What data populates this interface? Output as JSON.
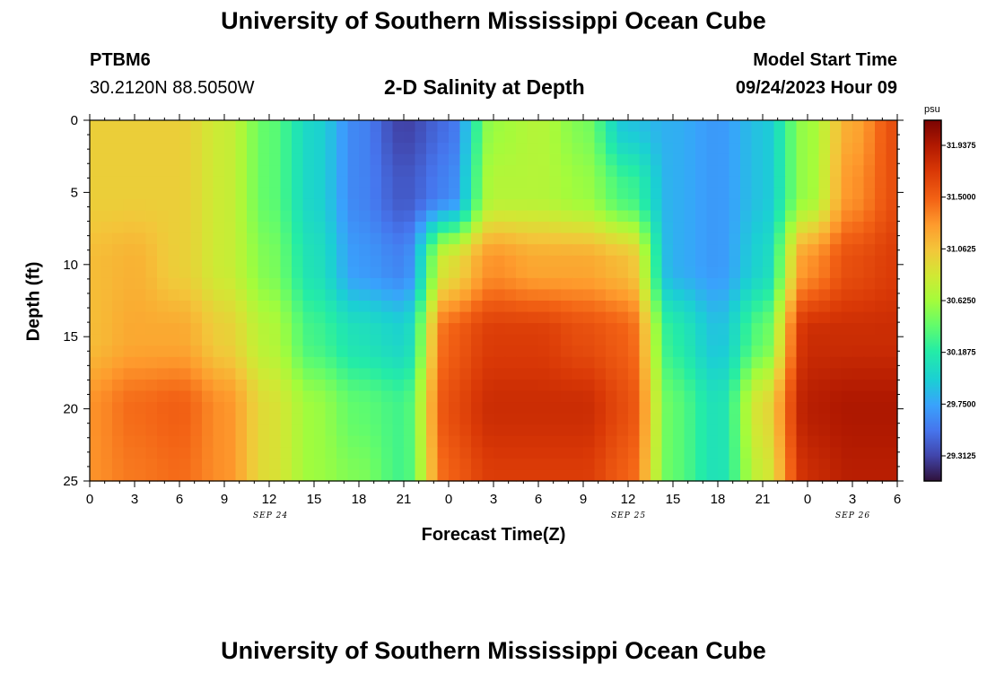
{
  "page": {
    "title_top": "University of Southern Mississippi Ocean Cube",
    "title_bottom": "University of Southern Mississippi Ocean Cube"
  },
  "station": {
    "id": "PTBM6",
    "coords": "30.2120N  88.5050W"
  },
  "model": {
    "label": "Model Start Time",
    "datetime": "09/24/2023 Hour 09"
  },
  "chart_data": {
    "type": "heatmap",
    "title": "2-D Salinity at Depth",
    "xlabel": "Forecast Time(Z)",
    "ylabel": "Depth (ft)",
    "x_range_hours": [
      0,
      54
    ],
    "ylim": [
      0,
      25
    ],
    "y_inverted": true,
    "x_tick_labels": [
      "0",
      "3",
      "6",
      "9",
      "12",
      "15",
      "18",
      "21",
      "0",
      "3",
      "6",
      "9",
      "12",
      "15",
      "18",
      "21",
      "0",
      "3",
      "6"
    ],
    "y_tick_labels": [
      "0",
      "5",
      "10",
      "15",
      "20",
      "25"
    ],
    "date_labels": [
      {
        "text": "SEP 24",
        "hour": 12
      },
      {
        "text": "SEP 25",
        "hour": 36
      },
      {
        "text": "SEP 26",
        "hour": 51
      }
    ],
    "colorbar": {
      "unit": "psu",
      "min": 29.1,
      "max": 32.15,
      "tick_labels": [
        "31.9375",
        "31.5000",
        "31.0625",
        "30.6250",
        "30.1875",
        "29.7500",
        "29.3125"
      ]
    },
    "grid_depth_ft": [
      0,
      5,
      10,
      15,
      20,
      25
    ],
    "grid_hours": [
      0,
      3,
      6,
      9,
      12,
      15,
      18,
      21,
      24,
      27,
      30,
      33,
      36,
      39,
      42,
      45,
      48,
      51,
      54
    ],
    "salinity_grid": [
      [
        31.0,
        31.0,
        31.0,
        30.8,
        30.4,
        30.0,
        29.6,
        29.3,
        29.5,
        30.6,
        30.7,
        30.5,
        29.9,
        29.8,
        29.7,
        29.9,
        30.6,
        31.2,
        31.6
      ],
      [
        31.0,
        31.0,
        31.0,
        30.8,
        30.4,
        30.0,
        29.6,
        29.4,
        29.6,
        30.7,
        30.7,
        30.6,
        30.3,
        29.8,
        29.7,
        29.9,
        30.6,
        31.3,
        31.6
      ],
      [
        31.1,
        31.15,
        31.0,
        30.8,
        30.5,
        30.1,
        29.7,
        29.6,
        30.9,
        31.3,
        31.2,
        31.2,
        31.1,
        29.8,
        29.7,
        30.0,
        31.3,
        31.6,
        31.7
      ],
      [
        31.1,
        31.2,
        31.2,
        31.0,
        30.7,
        30.3,
        30.1,
        30.0,
        31.5,
        31.7,
        31.7,
        31.6,
        31.5,
        30.2,
        29.9,
        30.4,
        31.8,
        31.8,
        31.8
      ],
      [
        31.3,
        31.45,
        31.5,
        31.3,
        30.9,
        30.6,
        30.4,
        30.3,
        31.6,
        31.8,
        31.8,
        31.8,
        31.6,
        30.4,
        30.1,
        30.9,
        31.9,
        31.95,
        31.95
      ],
      [
        31.3,
        31.4,
        31.45,
        31.3,
        30.9,
        30.6,
        30.5,
        30.3,
        31.5,
        31.7,
        31.7,
        31.7,
        31.5,
        30.4,
        30.1,
        30.8,
        31.8,
        31.9,
        31.9
      ]
    ]
  }
}
